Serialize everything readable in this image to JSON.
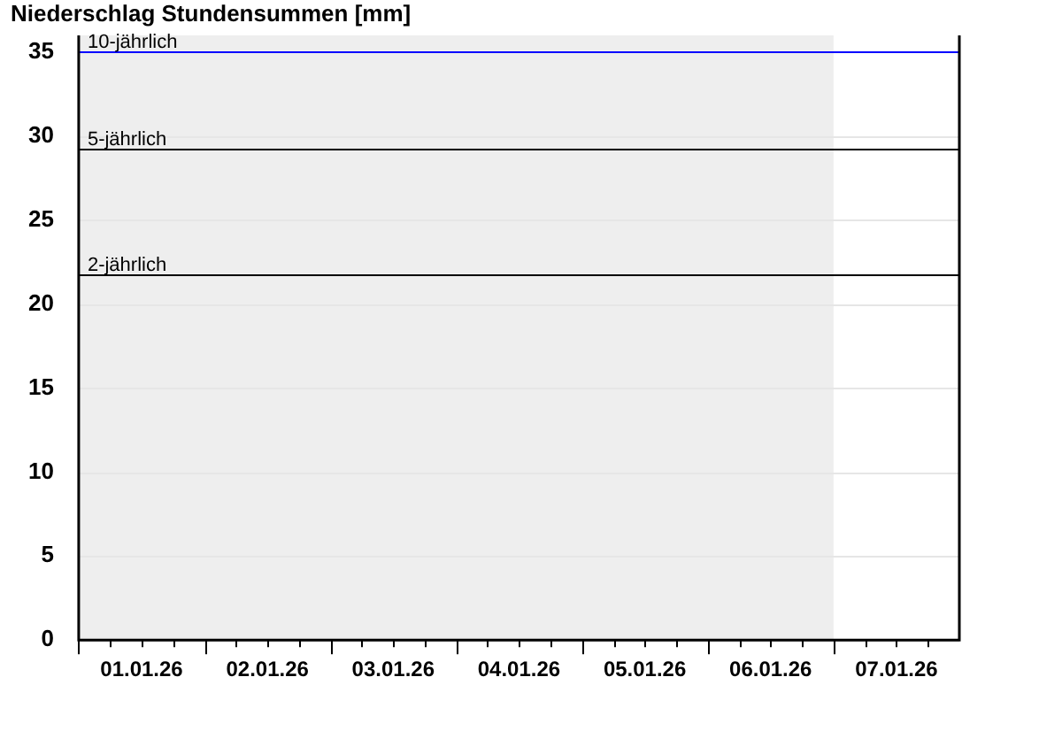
{
  "chart_data": {
    "type": "bar",
    "title": "Niederschlag Stundensummen [mm]",
    "categories": [
      "01.01.26",
      "02.01.26",
      "03.01.26",
      "04.01.26",
      "05.01.26",
      "06.01.26",
      "07.01.26"
    ],
    "values": [
      null,
      null,
      null,
      null,
      null,
      null,
      null
    ],
    "ylim": [
      0,
      36
    ],
    "yticks": [
      0,
      5,
      10,
      15,
      20,
      25,
      30,
      35
    ],
    "grid": "y",
    "legend": false,
    "ref_lines": [
      {
        "axis": "y",
        "value": 35,
        "label": "10-jährlich",
        "color": "#0000ff"
      },
      {
        "axis": "y",
        "value": 29.3,
        "label": "5-jährlich",
        "color": "#000000"
      },
      {
        "axis": "y",
        "value": 21.8,
        "label": "2-jährlich",
        "color": "#000000"
      }
    ],
    "bands": [
      {
        "axis": "x",
        "from": "01.01.26",
        "to": "06.01.26",
        "color": "#eeeeee"
      }
    ]
  }
}
